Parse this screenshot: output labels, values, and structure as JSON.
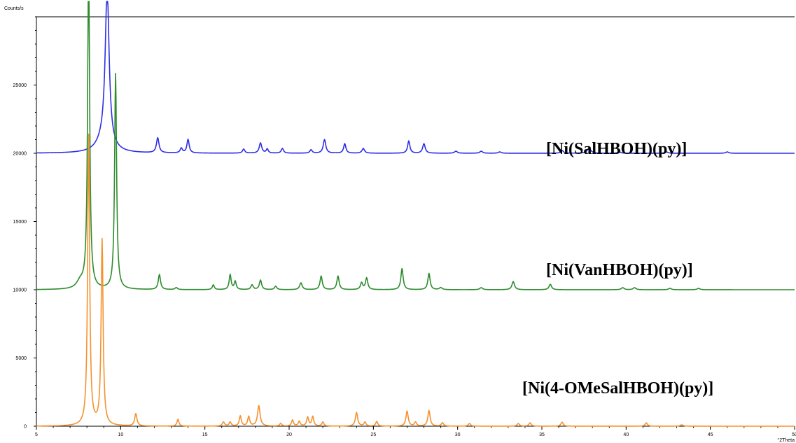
{
  "chart_data": {
    "type": "line",
    "ylabel": "Counts/s",
    "xlabel": "°2Theta",
    "xlim": [
      5,
      50
    ],
    "ylim": [
      0,
      30000
    ],
    "xticks": [
      5,
      10,
      15,
      20,
      25,
      30,
      35,
      40,
      45,
      50
    ],
    "x_tick_labels": [
      "5",
      "10",
      "15",
      "20",
      "25",
      "30",
      "35",
      "40",
      "45",
      "50"
    ],
    "yticks": [
      0,
      5000,
      10000,
      15000,
      20000,
      25000
    ],
    "y_tick_labels": [
      "0",
      "5000",
      "10000",
      "15000",
      "20000",
      "25000"
    ],
    "grid": false,
    "legend": "none",
    "series": [
      {
        "name": "[Ni(SalHBOH)(py)]",
        "color": "#2e2ee6",
        "baseline": 20000,
        "peaks": [
          {
            "x": 9.2,
            "y": 11400,
            "w": 0.14
          },
          {
            "x": 9.0,
            "y": 800,
            "w": 0.5
          },
          {
            "x": 12.2,
            "y": 1100,
            "w": 0.09
          },
          {
            "x": 13.6,
            "y": 350,
            "w": 0.08
          },
          {
            "x": 14.0,
            "y": 1000,
            "w": 0.08
          },
          {
            "x": 17.3,
            "y": 300,
            "w": 0.08
          },
          {
            "x": 18.3,
            "y": 750,
            "w": 0.09
          },
          {
            "x": 18.7,
            "y": 300,
            "w": 0.07
          },
          {
            "x": 19.6,
            "y": 350,
            "w": 0.08
          },
          {
            "x": 21.3,
            "y": 250,
            "w": 0.08
          },
          {
            "x": 22.1,
            "y": 1000,
            "w": 0.09
          },
          {
            "x": 23.3,
            "y": 700,
            "w": 0.08
          },
          {
            "x": 24.4,
            "y": 350,
            "w": 0.09
          },
          {
            "x": 27.1,
            "y": 900,
            "w": 0.08
          },
          {
            "x": 28.0,
            "y": 700,
            "w": 0.09
          },
          {
            "x": 29.9,
            "y": 150,
            "w": 0.1
          },
          {
            "x": 31.4,
            "y": 150,
            "w": 0.1
          },
          {
            "x": 32.5,
            "y": 100,
            "w": 0.1
          },
          {
            "x": 36.2,
            "y": 200,
            "w": 0.1
          },
          {
            "x": 37.8,
            "y": 400,
            "w": 0.12
          },
          {
            "x": 39.6,
            "y": 100,
            "w": 0.1
          },
          {
            "x": 42.4,
            "y": 100,
            "w": 0.1
          },
          {
            "x": 46.0,
            "y": 100,
            "w": 0.1
          }
        ]
      },
      {
        "name": "[Ni(VanHBOH)(py)]",
        "color": "#2e8b2e",
        "baseline": 10000,
        "peaks": [
          {
            "x": 8.1,
            "y": 24800,
            "w": 0.07
          },
          {
            "x": 7.6,
            "y": 500,
            "w": 0.25
          },
          {
            "x": 9.7,
            "y": 15800,
            "w": 0.07
          },
          {
            "x": 12.3,
            "y": 1100,
            "w": 0.08
          },
          {
            "x": 13.3,
            "y": 150,
            "w": 0.08
          },
          {
            "x": 15.5,
            "y": 350,
            "w": 0.07
          },
          {
            "x": 16.5,
            "y": 1100,
            "w": 0.07
          },
          {
            "x": 16.8,
            "y": 600,
            "w": 0.07
          },
          {
            "x": 17.8,
            "y": 350,
            "w": 0.08
          },
          {
            "x": 18.3,
            "y": 700,
            "w": 0.08
          },
          {
            "x": 19.2,
            "y": 250,
            "w": 0.08
          },
          {
            "x": 20.7,
            "y": 500,
            "w": 0.09
          },
          {
            "x": 21.9,
            "y": 1000,
            "w": 0.08
          },
          {
            "x": 22.9,
            "y": 1000,
            "w": 0.08
          },
          {
            "x": 24.3,
            "y": 500,
            "w": 0.08
          },
          {
            "x": 24.6,
            "y": 850,
            "w": 0.08
          },
          {
            "x": 26.7,
            "y": 1550,
            "w": 0.08
          },
          {
            "x": 28.3,
            "y": 1200,
            "w": 0.08
          },
          {
            "x": 29.0,
            "y": 150,
            "w": 0.1
          },
          {
            "x": 31.4,
            "y": 150,
            "w": 0.1
          },
          {
            "x": 33.3,
            "y": 600,
            "w": 0.09
          },
          {
            "x": 35.5,
            "y": 400,
            "w": 0.09
          },
          {
            "x": 39.8,
            "y": 150,
            "w": 0.1
          },
          {
            "x": 40.5,
            "y": 150,
            "w": 0.1
          },
          {
            "x": 42.6,
            "y": 100,
            "w": 0.1
          },
          {
            "x": 44.3,
            "y": 100,
            "w": 0.1
          }
        ]
      },
      {
        "name": "[Ni(4-OMeSalHBOH)(py)]",
        "color": "#f5922e",
        "baseline": 0,
        "peaks": [
          {
            "x": 8.1,
            "y": 21300,
            "w": 0.07
          },
          {
            "x": 8.9,
            "y": 13600,
            "w": 0.07
          },
          {
            "x": 10.9,
            "y": 900,
            "w": 0.08
          },
          {
            "x": 13.4,
            "y": 500,
            "w": 0.07
          },
          {
            "x": 16.1,
            "y": 300,
            "w": 0.08
          },
          {
            "x": 16.5,
            "y": 300,
            "w": 0.07
          },
          {
            "x": 17.1,
            "y": 750,
            "w": 0.07
          },
          {
            "x": 17.6,
            "y": 700,
            "w": 0.07
          },
          {
            "x": 18.2,
            "y": 1500,
            "w": 0.09
          },
          {
            "x": 19.5,
            "y": 200,
            "w": 0.07
          },
          {
            "x": 20.2,
            "y": 450,
            "w": 0.07
          },
          {
            "x": 20.6,
            "y": 350,
            "w": 0.07
          },
          {
            "x": 21.1,
            "y": 650,
            "w": 0.07
          },
          {
            "x": 21.4,
            "y": 700,
            "w": 0.07
          },
          {
            "x": 22.0,
            "y": 300,
            "w": 0.07
          },
          {
            "x": 24.0,
            "y": 1000,
            "w": 0.08
          },
          {
            "x": 24.5,
            "y": 300,
            "w": 0.07
          },
          {
            "x": 25.2,
            "y": 350,
            "w": 0.07
          },
          {
            "x": 27.0,
            "y": 1100,
            "w": 0.08
          },
          {
            "x": 27.5,
            "y": 300,
            "w": 0.07
          },
          {
            "x": 28.3,
            "y": 1150,
            "w": 0.08
          },
          {
            "x": 29.1,
            "y": 250,
            "w": 0.08
          },
          {
            "x": 30.7,
            "y": 200,
            "w": 0.08
          },
          {
            "x": 33.6,
            "y": 200,
            "w": 0.08
          },
          {
            "x": 34.3,
            "y": 250,
            "w": 0.08
          },
          {
            "x": 36.2,
            "y": 300,
            "w": 0.08
          },
          {
            "x": 41.2,
            "y": 250,
            "w": 0.08
          },
          {
            "x": 43.3,
            "y": 100,
            "w": 0.1
          }
        ]
      }
    ]
  }
}
